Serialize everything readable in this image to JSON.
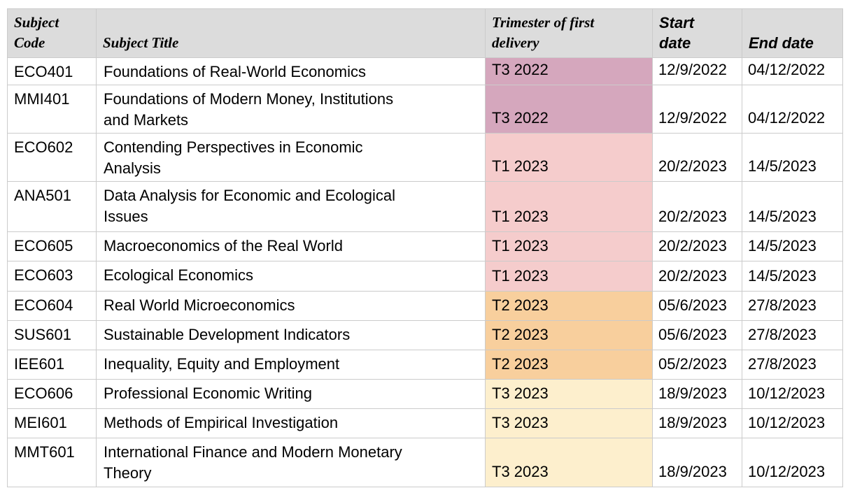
{
  "table": {
    "headers": {
      "subject_code": "Subject\nCode",
      "subject_title": "Subject Title",
      "trimester": "Trimester of first\ndelivery",
      "start_date": "Start\ndate",
      "end_date": "End date"
    },
    "rows": [
      {
        "code": "ECO401",
        "title": "Foundations of Real-World Economics",
        "trimester": "T3 2022",
        "start": "12/9/2022",
        "end": "04/12/2022"
      },
      {
        "code": "MMI401",
        "title": "Foundations of Modern Money, Institutions\nand Markets",
        "trimester": "T3 2022",
        "start": "12/9/2022",
        "end": "04/12/2022"
      },
      {
        "code": "ECO602",
        "title": "Contending Perspectives in Economic\nAnalysis",
        "trimester": "T1 2023",
        "start": "20/2/2023",
        "end": "14/5/2023"
      },
      {
        "code": "ANA501",
        "title": "Data Analysis for Economic and Ecological\nIssues",
        "trimester": "T1 2023",
        "start": "20/2/2023",
        "end": "14/5/2023"
      },
      {
        "code": "ECO605",
        "title": "Macroeconomics of the Real World",
        "trimester": "T1 2023",
        "start": "20/2/2023",
        "end": "14/5/2023"
      },
      {
        "code": "ECO603",
        "title": "Ecological Economics",
        "trimester": "T1 2023",
        "start": "20/2/2023",
        "end": "14/5/2023"
      },
      {
        "code": "ECO604",
        "title": "Real World Microeconomics",
        "trimester": "T2 2023",
        "start": "05/6/2023",
        "end": "27/8/2023"
      },
      {
        "code": "SUS601",
        "title": "Sustainable Development Indicators",
        "trimester": "T2 2023",
        "start": "05/6/2023",
        "end": "27/8/2023"
      },
      {
        "code": "IEE601",
        "title": "Inequality, Equity and Employment",
        "trimester": "T2 2023",
        "start": "05/2/2023",
        "end": "27/8/2023"
      },
      {
        "code": "ECO606",
        "title": "Professional Economic Writing",
        "trimester": "T3 2023",
        "start": "18/9/2023",
        "end": "10/12/2023"
      },
      {
        "code": "MEI601",
        "title": "Methods of Empirical Investigation",
        "trimester": "T3 2023",
        "start": "18/9/2023",
        "end": "10/12/2023"
      },
      {
        "code": "MMT601",
        "title": "International Finance and Modern Monetary\nTheory",
        "trimester": "T3 2023",
        "start": "18/9/2023",
        "end": "10/12/2023"
      }
    ],
    "trimester_colors": {
      "T3 2022": "#d5a7bd",
      "T1 2023": "#f5cccc",
      "T2 2023": "#f8cf9d",
      "T3 2023": "#fdefcd"
    },
    "header_bg": "#dcdcdc",
    "border_color": "#cbcbcb"
  }
}
